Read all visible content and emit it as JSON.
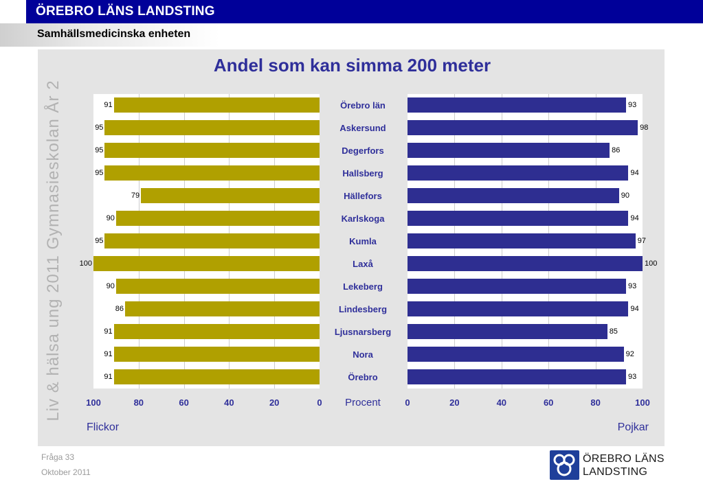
{
  "header": {
    "org_title": "ÖREBRO LÄNS LANDSTING",
    "unit_title": "Samhällsmedicinska enheten"
  },
  "side_text": "Liv & hälsa ung 2011 Gymnasieskolan År 2",
  "chart_data": {
    "type": "bar",
    "title": "Andel som kan simma 200 meter",
    "xlabel": "Procent",
    "categories": [
      "Örebro län",
      "Askersund",
      "Degerfors",
      "Hallsberg",
      "Hällefors",
      "Karlskoga",
      "Kumla",
      "Laxå",
      "Lekeberg",
      "Lindesberg",
      "Ljusnarsberg",
      "Nora",
      "Örebro"
    ],
    "series": [
      {
        "name": "Flickor",
        "values": [
          91,
          95,
          95,
          95,
          79,
          90,
          95,
          100,
          90,
          86,
          91,
          91,
          91
        ]
      },
      {
        "name": "Pojkar",
        "values": [
          93,
          98,
          86,
          94,
          90,
          94,
          97,
          100,
          93,
          94,
          85,
          92,
          93
        ]
      }
    ],
    "xlim": [
      0,
      100
    ],
    "xticks": [
      0,
      20,
      40,
      60,
      80,
      100
    ],
    "orientation": "horizontal",
    "layout": "back-to-back",
    "colors": {
      "Flickor": "#b0a000",
      "Pojkar": "#2e2e91"
    },
    "grid": true
  },
  "footer": {
    "question": "Fråga 33",
    "date": "Oktober 2011"
  },
  "logo": {
    "line1": "ÖREBRO LÄNS",
    "line2": "LANDSTING"
  }
}
